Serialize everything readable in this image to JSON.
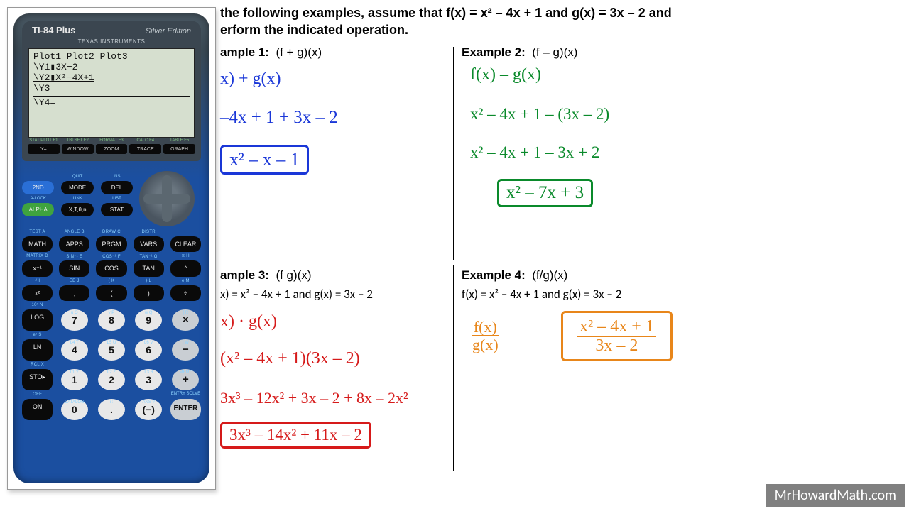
{
  "instruction_l1": "the following examples, assume that f(x) = x² – 4x + 1 and g(x) = 3x – 2 and",
  "instruction_l2": "erform the indicated operation.",
  "ex1": {
    "label": "ample 1:",
    "op": "(f + g)(x)",
    "w1": "x) + g(x)",
    "w2": "–4x + 1 + 3x – 2",
    "ans": "x² – x – 1"
  },
  "ex2": {
    "label": "Example 2:",
    "op": "(f – g)(x)",
    "w1": "f(x) – g(x)",
    "w2": "x² – 4x + 1 – (3x – 2)",
    "w3": "x² – 4x + 1 – 3x + 2",
    "ans": "x² – 7x + 3"
  },
  "ex3": {
    "label": "ample 3:",
    "op": "(f  g)(x)",
    "sub": "x) = x² – 4x + 1 and g(x) = 3x – 2",
    "w1": "x) · g(x)",
    "w2": "(x² – 4x + 1)(3x – 2)",
    "w3": "3x³ – 12x² + 3x – 2 + 8x – 2x²",
    "ans": "3x³ – 14x² + 11x – 2"
  },
  "ex4": {
    "label": "Example 4:",
    "op": "(f/g)(x)",
    "sub": "f(x) = x² – 4x + 1 and g(x) = 3x – 2",
    "fn": "f(x)",
    "fd": "g(x)",
    "an": "x² – 4x + 1",
    "ad": "3x – 2"
  },
  "calc": {
    "brand_l": "TI-84 Plus",
    "brand_r": "Silver Edition",
    "ti": "TEXAS INSTRUMENTS",
    "screen": [
      "Plot1  Plot2  Plot3",
      "\\Y1▮3X−2",
      "\\Y2▮X²−4X+1",
      "\\Y3=",
      "",
      "\\Y4="
    ],
    "fkeys": [
      {
        "lbl": "STAT PLOT F1",
        "t": "Y="
      },
      {
        "lbl": "TBLSET F2",
        "t": "WINDOW"
      },
      {
        "lbl": "FORMAT F3",
        "t": "ZOOM"
      },
      {
        "lbl": "CALC F4",
        "t": "TRACE"
      },
      {
        "lbl": "TABLE F5",
        "t": "GRAPH"
      }
    ],
    "leftkeys": [
      {
        "t": "2ND",
        "cls": "blue2",
        "yl": ""
      },
      {
        "t": "MODE",
        "yl": "QUIT"
      },
      {
        "t": "DEL",
        "yl": "INS"
      },
      {
        "t": "ALPHA",
        "cls": "green2",
        "yl": "A-LOCK"
      },
      {
        "t": "X,T,θ,n",
        "yl": "LINK"
      },
      {
        "t": "STAT",
        "yl": "LIST"
      }
    ],
    "funcs": [
      {
        "t": "MATH",
        "yl": "TEST A"
      },
      {
        "t": "APPS",
        "yl": "ANGLE B"
      },
      {
        "t": "PRGM",
        "yl": "DRAW C"
      },
      {
        "t": "VARS",
        "yl": "DISTR"
      },
      {
        "t": "CLEAR",
        "yl": ""
      },
      {
        "t": "x⁻¹",
        "yl": "MATRIX D"
      },
      {
        "t": "SIN",
        "yl": "SIN⁻¹ E"
      },
      {
        "t": "COS",
        "yl": "COS⁻¹ F"
      },
      {
        "t": "TAN",
        "yl": "TAN⁻¹ G"
      },
      {
        "t": "^",
        "yl": "π H"
      },
      {
        "t": "x²",
        "yl": "√ I"
      },
      {
        "t": ",",
        "yl": "EE J"
      },
      {
        "t": "(",
        "yl": "{ K"
      },
      {
        "t": ")",
        "yl": "} L"
      },
      {
        "t": "÷",
        "yl": "e M"
      },
      {
        "t": "LOG",
        "yl": "10ˣ N"
      },
      {
        "t": "7",
        "yl": "u O",
        "num": true
      },
      {
        "t": "8",
        "yl": "v P",
        "num": true
      },
      {
        "t": "9",
        "yl": "w Q",
        "num": true
      },
      {
        "t": "×",
        "yl": "[ R",
        "op": true
      },
      {
        "t": "LN",
        "yl": "eˣ S"
      },
      {
        "t": "4",
        "yl": "L4 T",
        "num": true
      },
      {
        "t": "5",
        "yl": "L5 U",
        "num": true
      },
      {
        "t": "6",
        "yl": "L6 V",
        "num": true
      },
      {
        "t": "−",
        "yl": "] W",
        "op": true
      },
      {
        "t": "STO▸",
        "yl": "RCL X"
      },
      {
        "t": "1",
        "yl": "L1 Y",
        "num": true
      },
      {
        "t": "2",
        "yl": "L2 Z",
        "num": true
      },
      {
        "t": "3",
        "yl": "L3 θ",
        "num": true
      },
      {
        "t": "+",
        "yl": "MEM \"",
        "op": true
      },
      {
        "t": "ON",
        "yl": "OFF"
      },
      {
        "t": "0",
        "yl": "CATALOG",
        "num": true
      },
      {
        "t": ".",
        "yl": "i :",
        "num": true
      },
      {
        "t": "(−)",
        "yl": "ANS ?",
        "num": true
      },
      {
        "t": "ENTER",
        "yl": "ENTRY SOLVE",
        "enter": true
      }
    ]
  },
  "watermark": "MrHowardMath.com",
  "colors": {
    "blue": "#1a37d8",
    "green": "#0a8a2b",
    "red": "#d61a1a",
    "orange": "#e8861a"
  }
}
